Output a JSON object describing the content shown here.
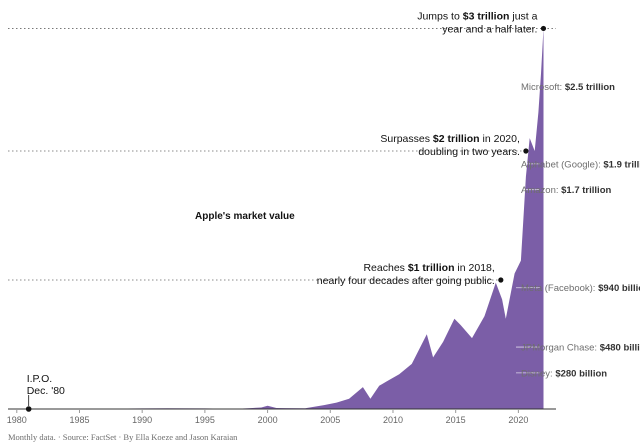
{
  "chart_data": {
    "type": "area",
    "title": "Apple's market value",
    "unit": "trillion USD",
    "color": "#7b5ea7",
    "ylim": [
      0,
      3.0
    ],
    "x_ticks": [
      "1980",
      "1985",
      "1990",
      "1995",
      "2000",
      "2005",
      "2010",
      "2015",
      "2020"
    ],
    "xlim": [
      1979.3,
      2023.0
    ],
    "series": [
      {
        "x": [
          1980.95,
          1981.5,
          1983,
          1985,
          1987,
          1990,
          1992,
          1995,
          1997,
          1998,
          1999.5,
          2000.0,
          2000.7,
          2001.5,
          2003.0,
          2004.5,
          2005.5,
          2006.5,
          2007.6,
          2008.2,
          2008.9,
          2009.6,
          2010.5,
          2011.5,
          2012.7,
          2013.2,
          2014.0,
          2014.9,
          2015.4,
          2016.3,
          2017.3,
          2018.2,
          2018.7,
          2019.0,
          2019.7,
          2020.2,
          2020.6,
          2020.9,
          2021.3,
          2021.6,
          2021.8,
          2022.0
        ],
        "y": [
          0.001,
          0.003,
          0.002,
          0.002,
          0.004,
          0.005,
          0.006,
          0.005,
          0.002,
          0.004,
          0.012,
          0.025,
          0.008,
          0.007,
          0.006,
          0.03,
          0.05,
          0.08,
          0.17,
          0.08,
          0.18,
          0.22,
          0.27,
          0.35,
          0.58,
          0.4,
          0.52,
          0.7,
          0.65,
          0.55,
          0.72,
          0.98,
          0.85,
          0.7,
          1.05,
          1.15,
          1.8,
          2.1,
          2.0,
          2.3,
          2.6,
          2.95
        ]
      }
    ],
    "annotations": [
      {
        "marker": "I.P.O.",
        "detail": "Dec. '80",
        "x": 1980.95,
        "y": 0.001
      },
      {
        "pre": "Reaches ",
        "strong": "$1 trillion",
        "post": " in 2018,",
        "line2": "nearly four decades after going public.",
        "x": 2018.6,
        "y": 1.0
      },
      {
        "pre": "Surpasses ",
        "strong": "$2 trillion",
        "post": " in 2020,",
        "line2": "doubling in two years.",
        "x": 2020.6,
        "y": 2.0
      },
      {
        "pre": "Jumps to ",
        "strong": "$3 trillion",
        "post": " just a",
        "line2": "year and a half later.",
        "x": 2022.0,
        "y": 2.95
      }
    ],
    "reference_lines": [
      {
        "name": "Microsoft:",
        "value_label": "$2.5 trillion",
        "value": 2.5
      },
      {
        "name": "Alphabet (Google):",
        "value_label": "$1.9 trillion",
        "value": 1.9
      },
      {
        "name": "Amazon:",
        "value_label": "$1.7 trillion",
        "value": 1.7
      },
      {
        "name": "Meta (Facebook):",
        "value_label": "$940 billion",
        "value": 0.94
      },
      {
        "name": "JPMorgan Chase:",
        "value_label": "$480 billion",
        "value": 0.48
      },
      {
        "name": "Disney:",
        "value_label": "$280 billion",
        "value": 0.28
      }
    ]
  },
  "source_line": "Monthly data.  ·  Source: FactSet  ·  By Ella Koeze and Jason Karaian"
}
